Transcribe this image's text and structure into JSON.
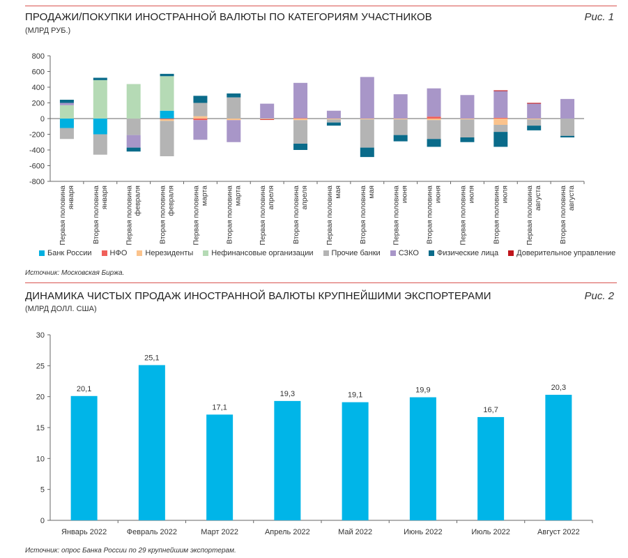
{
  "figure1": {
    "title": "ПРОДАЖИ/ПОКУПКИ ИНОСТРАННОЙ ВАЛЮТЫ ПО КАТЕГОРИЯМ УЧАСТНИКОВ",
    "unit": "(МЛРД РУБ.)",
    "fig_label": "Рис. 1",
    "source": "Источник: Московская Биржа."
  },
  "figure2": {
    "title": "ДИНАМИКА ЧИСТЫХ ПРОДАЖ ИНОСТРАННОЙ ВАЛЮТЫ КРУПНЕЙШИМИ ЭКСПОРТЕРАМИ",
    "unit": "(МЛРД ДОЛЛ. США)",
    "fig_label": "Рис. 2",
    "source": "Источник: опрос Банка России по 29 крупнейшим экспортерам."
  },
  "chart_data": [
    {
      "type": "bar",
      "stacked": true,
      "title": "ПРОДАЖИ/ПОКУПКИ ИНОСТРАННОЙ ВАЛЮТЫ ПО КАТЕГОРИЯМ УЧАСТНИКОВ",
      "ylabel": "МЛРД РУБ.",
      "ylim": [
        -800,
        800
      ],
      "yticks": [
        800,
        600,
        400,
        200,
        0,
        -200,
        -400,
        -600,
        -800
      ],
      "categories": [
        [
          "Первая половина",
          "января"
        ],
        [
          "Вторая половина",
          "января"
        ],
        [
          "Первая половина",
          "февраля"
        ],
        [
          "Вторая половина",
          "февраля"
        ],
        [
          "Первая половина",
          "марта"
        ],
        [
          "Вторая половина",
          "марта"
        ],
        [
          "Первая половина",
          "апреля"
        ],
        [
          "Вторая половина",
          "апреля"
        ],
        [
          "Первая половина",
          "мая"
        ],
        [
          "Вторая половина",
          "мая"
        ],
        [
          "Первая половина",
          "июня"
        ],
        [
          "Вторая половина",
          "июня"
        ],
        [
          "Первая половина",
          "июля"
        ],
        [
          "Вторая половина",
          "июля"
        ],
        [
          "Первая половина",
          "августа"
        ],
        [
          "Вторая половина",
          "августа"
        ]
      ],
      "series": [
        {
          "name": "Банк России",
          "color": "#00b0e0",
          "values": [
            -120,
            -200,
            0,
            100,
            0,
            0,
            0,
            0,
            0,
            0,
            0,
            0,
            0,
            0,
            0,
            0
          ]
        },
        {
          "name": "НФО",
          "color": "#f0605a",
          "values": [
            0,
            0,
            0,
            -10,
            -20,
            0,
            0,
            5,
            0,
            0,
            0,
            25,
            0,
            10,
            0,
            0
          ]
        },
        {
          "name": "Нерезиденты",
          "color": "#fbc38c",
          "values": [
            0,
            0,
            0,
            -20,
            30,
            -20,
            -10,
            -20,
            -10,
            -10,
            -10,
            -20,
            -10,
            -80,
            -10,
            0
          ]
        },
        {
          "name": "Нефинансовые организации",
          "color": "#b5dab5",
          "values": [
            170,
            490,
            440,
            440,
            0,
            0,
            0,
            0,
            0,
            0,
            0,
            0,
            0,
            0,
            0,
            0
          ]
        },
        {
          "name": "Прочие банки",
          "color": "#b4b4b4",
          "values": [
            -140,
            -260,
            -210,
            -450,
            170,
            270,
            0,
            -300,
            -40,
            -360,
            -200,
            -240,
            -230,
            -90,
            -80,
            -220
          ]
        },
        {
          "name": "СЗКО",
          "color": "#a896c8",
          "values": [
            30,
            0,
            -160,
            0,
            -250,
            -280,
            190,
            450,
            100,
            530,
            310,
            360,
            300,
            340,
            190,
            250
          ]
        },
        {
          "name": "Физические лица",
          "color": "#0a6b8a",
          "values": [
            40,
            30,
            -50,
            30,
            90,
            50,
            0,
            -80,
            -40,
            -120,
            -80,
            -100,
            -60,
            -190,
            -60,
            -20
          ]
        },
        {
          "name": "Доверительное управление",
          "color": "#c0141b",
          "values": [
            0,
            0,
            0,
            0,
            0,
            0,
            -5,
            0,
            0,
            0,
            0,
            0,
            0,
            10,
            10,
            0
          ]
        }
      ]
    },
    {
      "type": "bar",
      "title": "ДИНАМИКА ЧИСТЫХ ПРОДАЖ ИНОСТРАННОЙ ВАЛЮТЫ КРУПНЕЙШИМИ ЭКСПОРТЕРАМИ",
      "ylabel": "МЛРД ДОЛЛ. США",
      "ylim": [
        0,
        30
      ],
      "yticks": [
        30,
        25,
        20,
        15,
        10,
        5,
        0
      ],
      "categories": [
        "Январь 2022",
        "Февраль 2022",
        "Март 2022",
        "Апрель 2022",
        "Май 2022",
        "Июнь 2022",
        "Июль 2022",
        "Август 2022"
      ],
      "values": [
        20.1,
        25.1,
        17.1,
        19.3,
        19.1,
        19.9,
        16.7,
        20.3
      ],
      "labels": [
        "20,1",
        "25,1",
        "17,1",
        "19,3",
        "19,1",
        "19,9",
        "16,7",
        "20,3"
      ],
      "color": "#00b5e8"
    }
  ]
}
